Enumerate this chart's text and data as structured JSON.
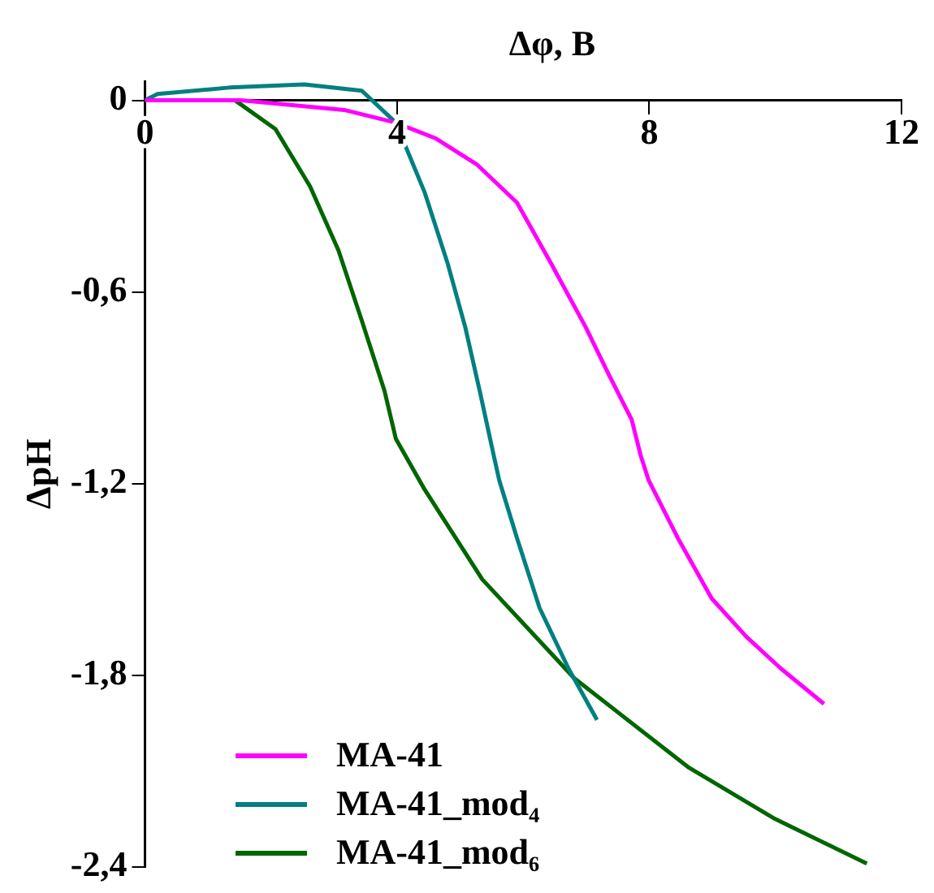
{
  "chart_data": {
    "type": "line",
    "xlabel": "Δφ, В",
    "ylabel": "ΔpH",
    "xlim": [
      0,
      12
    ],
    "xticks": [
      0,
      4,
      8,
      12
    ],
    "ylim": [
      -2.4,
      0.06
    ],
    "yticks": [
      {
        "value": 0,
        "label": "0"
      },
      {
        "value": -0.6,
        "label": "-0,6"
      },
      {
        "value": -1.2,
        "label": "-1,2"
      },
      {
        "value": -1.8,
        "label": "-1,8"
      },
      {
        "value": -2.4,
        "label": "-2,4"
      }
    ],
    "grid": false,
    "legend": "bottom left",
    "marker": "none",
    "line_style": "solid",
    "series": [
      {
        "name": "MA-41",
        "color": "#ff00ff",
        "x": [
          0,
          1.52,
          3.16,
          3.98,
          4.62,
          5.26,
          5.9,
          6.44,
          6.99,
          7.36,
          7.72,
          7.86,
          7.99,
          8.45,
          8.99,
          9.54,
          10.09,
          10.77
        ],
        "values": [
          0,
          0,
          -0.03,
          -0.07,
          -0.12,
          -0.2,
          -0.32,
          -0.51,
          -0.71,
          -0.86,
          -1.0,
          -1.11,
          -1.19,
          -1.37,
          -1.56,
          -1.68,
          -1.78,
          -1.89
        ]
      },
      {
        "name": "MA-41_mod₄",
        "color": "#008080",
        "x": [
          0,
          0.2,
          1.34,
          2.53,
          3.44,
          3.98,
          4.44,
          4.8,
          5.08,
          5.31,
          5.53,
          5.62,
          5.9,
          6.26,
          6.72,
          7.17
        ],
        "values": [
          0,
          0.02,
          0.04,
          0.05,
          0.03,
          -0.07,
          -0.29,
          -0.51,
          -0.71,
          -0.91,
          -1.11,
          -1.19,
          -1.37,
          -1.59,
          -1.78,
          -1.94
        ]
      },
      {
        "name": "MA-41_mod₆",
        "color": "#006600",
        "x": [
          0,
          1.43,
          2.07,
          2.62,
          3.07,
          3.44,
          3.8,
          3.98,
          4.44,
          5.35,
          6.81,
          8.63,
          9.99,
          11.45
        ],
        "values": [
          0,
          0,
          -0.09,
          -0.27,
          -0.47,
          -0.69,
          -0.91,
          -1.06,
          -1.22,
          -1.5,
          -1.81,
          -2.09,
          -2.25,
          -2.39
        ]
      }
    ]
  }
}
